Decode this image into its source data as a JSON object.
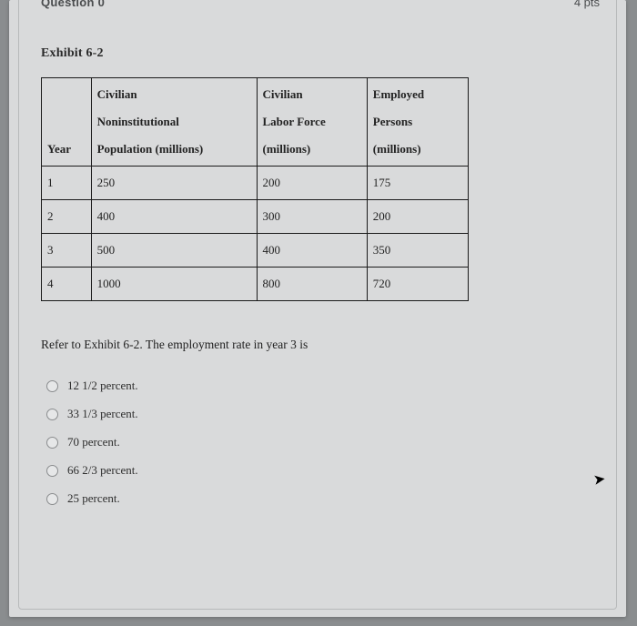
{
  "header": {
    "question_word": "Question 0",
    "points": "4 pts"
  },
  "exhibit": {
    "title": "Exhibit 6-2"
  },
  "table": {
    "headers": {
      "year": "Year",
      "col1_line1": "Civilian",
      "col1_line2": "Noninstitutional",
      "col1_line3": "Population (millions)",
      "col2_line1": "Civilian",
      "col2_line2": "Labor Force",
      "col2_line3": "(millions)",
      "col3_line1": "Employed",
      "col3_line2": "Persons",
      "col3_line3": "(millions)"
    },
    "rows": [
      {
        "year": "1",
        "pop": "250",
        "labor": "200",
        "emp": "175"
      },
      {
        "year": "2",
        "pop": "400",
        "labor": "300",
        "emp": "200"
      },
      {
        "year": "3",
        "pop": "500",
        "labor": "400",
        "emp": "350"
      },
      {
        "year": "4",
        "pop": "1000",
        "labor": "800",
        "emp": "720"
      }
    ]
  },
  "prompt": "Refer to Exhibit 6-2. The employment rate in year 3 is",
  "options": [
    "12 1/2 percent.",
    "33 1/3 percent.",
    "70 percent.",
    "66 2/3 percent.",
    "25 percent."
  ],
  "colors": {
    "page_bg": "#8a8d8f",
    "panel_bg": "#d9dadb",
    "border": "#1a1a1a",
    "radio_border": "#8a8c8e"
  }
}
